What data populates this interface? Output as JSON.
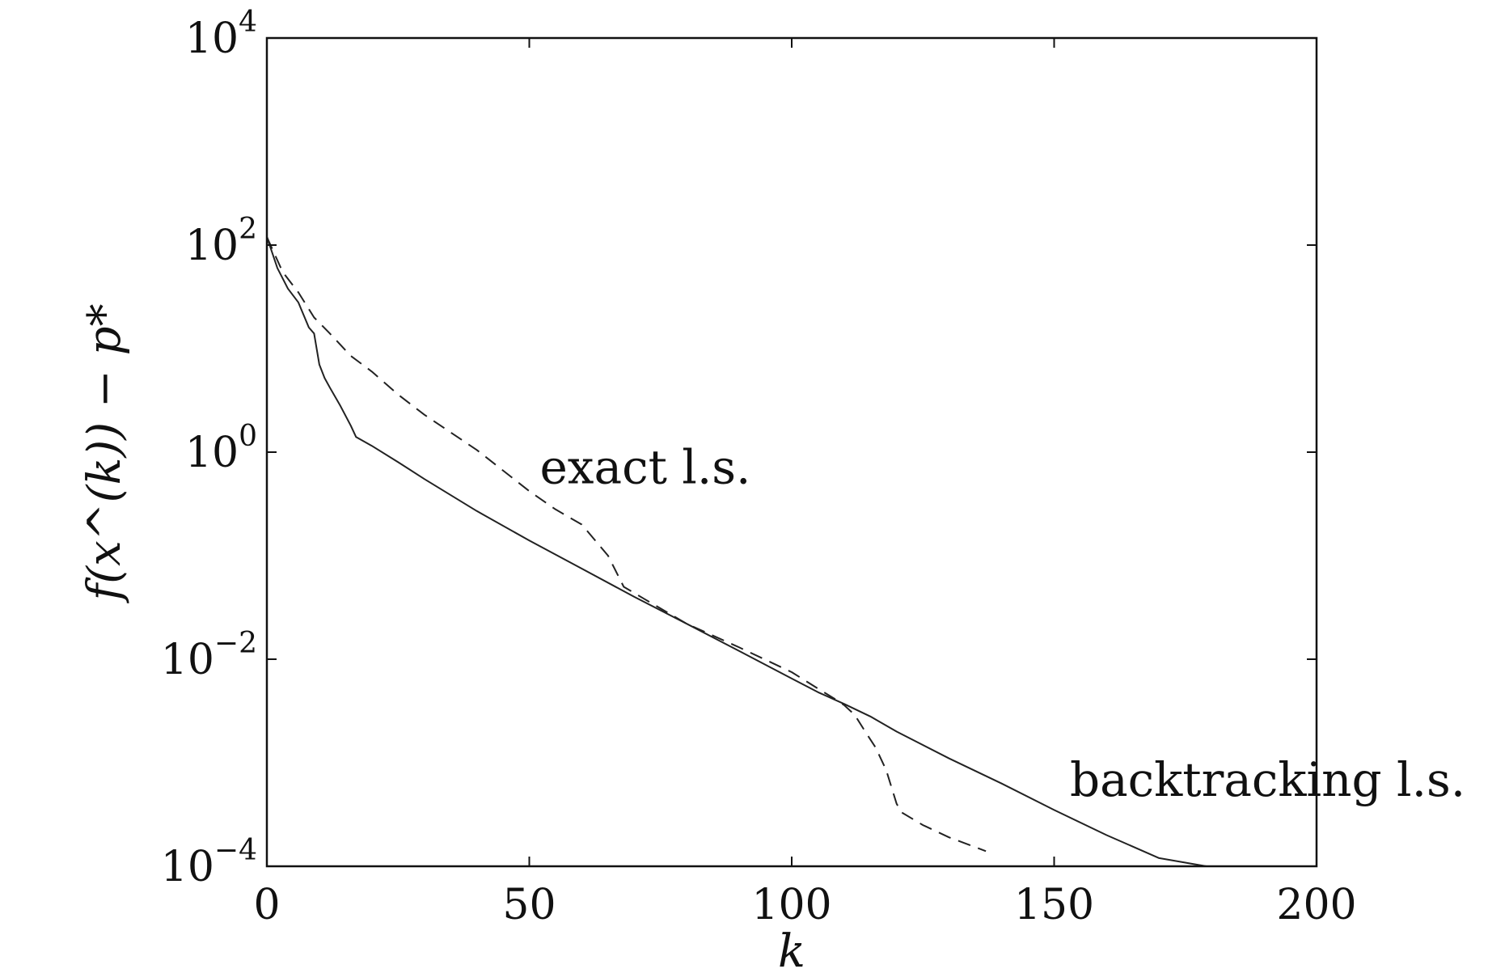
{
  "chart_data": {
    "type": "line",
    "title": "",
    "xlabel": "k",
    "ylabel": "f(x^(k)) − p*",
    "xlim": [
      0,
      200
    ],
    "ylim": [
      0.0001,
      10000
    ],
    "yscale": "log",
    "grid": false,
    "x_ticks": [
      0,
      50,
      100,
      150,
      200
    ],
    "x_tick_labels": [
      "0",
      "50",
      "100",
      "150",
      "200"
    ],
    "y_ticks": [
      0.0001,
      0.01,
      1,
      100,
      10000
    ],
    "y_tick_labels": [
      {
        "base": "10",
        "exp": "−4"
      },
      {
        "base": "10",
        "exp": "−2"
      },
      {
        "base": "10",
        "exp": "0"
      },
      {
        "base": "10",
        "exp": "2"
      },
      {
        "base": "10",
        "exp": "4"
      }
    ],
    "annotations": [
      {
        "text": "exact l.s.",
        "x": 52,
        "y": 0.5
      },
      {
        "text": "backtracking l.s.",
        "x": 153,
        "y": 0.00048
      }
    ],
    "series": [
      {
        "style": "solid",
        "color": "#222222",
        "x": [
          0,
          2,
          4,
          6,
          8,
          9,
          10,
          11,
          12,
          14,
          16,
          17,
          20,
          25,
          30,
          40,
          50,
          60,
          70,
          80,
          90,
          100,
          105,
          110,
          115,
          120,
          130,
          140,
          150,
          160,
          170,
          179
        ],
        "y": [
          120,
          60,
          38,
          28,
          16,
          14,
          7.0,
          5.2,
          4.2,
          2.8,
          1.8,
          1.4,
          1.15,
          0.8,
          0.55,
          0.27,
          0.14,
          0.075,
          0.04,
          0.022,
          0.012,
          0.0065,
          0.0048,
          0.0037,
          0.0028,
          0.002,
          0.0011,
          0.00063,
          0.00035,
          0.0002,
          0.00012,
          0.0001
        ]
      },
      {
        "style": "dashed",
        "color": "#222222",
        "x": [
          0,
          3,
          6,
          9,
          12,
          16,
          20,
          25,
          30,
          40,
          50,
          55,
          60,
          65,
          68,
          72,
          80,
          90,
          100,
          105,
          108,
          110,
          112,
          114,
          116,
          118,
          120,
          121,
          125,
          130,
          137
        ],
        "y": [
          120,
          55,
          35,
          20,
          14,
          8.5,
          6.0,
          3.6,
          2.3,
          1.05,
          0.42,
          0.28,
          0.2,
          0.1,
          0.05,
          0.038,
          0.022,
          0.013,
          0.0075,
          0.0052,
          0.0042,
          0.0036,
          0.0029,
          0.002,
          0.0014,
          0.00085,
          0.0004,
          0.00033,
          0.00025,
          0.00019,
          0.00014
        ]
      }
    ]
  }
}
